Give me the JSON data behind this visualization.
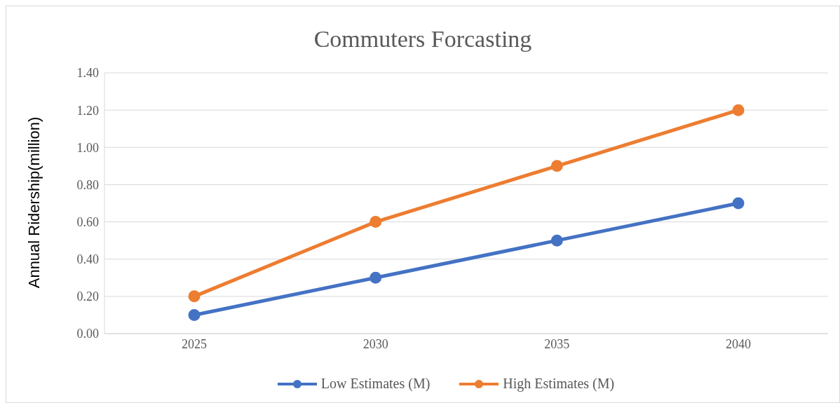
{
  "chart_data": {
    "type": "line",
    "title": "Commuters Forcasting",
    "ylabel": "Annual Ridership(million)",
    "categories": [
      "2025",
      "2030",
      "2035",
      "2040"
    ],
    "series": [
      {
        "name": "Low Estimates (M)",
        "color": "#4472c4",
        "values": [
          0.1,
          0.3,
          0.5,
          0.7
        ]
      },
      {
        "name": "High Estimates (M)",
        "color": "#ed7d31",
        "values": [
          0.2,
          0.6,
          0.9,
          1.2
        ]
      }
    ],
    "ylim": [
      0,
      1.4
    ],
    "yticks": [
      {
        "value": 0,
        "label": "0.00"
      },
      {
        "value": 0.2,
        "label": "0.20"
      },
      {
        "value": 0.4,
        "label": "0.40"
      },
      {
        "value": 0.6,
        "label": "0.60"
      },
      {
        "value": 0.8,
        "label": "0.80"
      },
      {
        "value": 1,
        "label": "1.00"
      },
      {
        "value": 1.2,
        "label": "1.20"
      },
      {
        "value": 1.4,
        "label": "1.40"
      }
    ],
    "grid": "y",
    "legend": "bottom",
    "marker": "circle",
    "line_style": "solid"
  }
}
